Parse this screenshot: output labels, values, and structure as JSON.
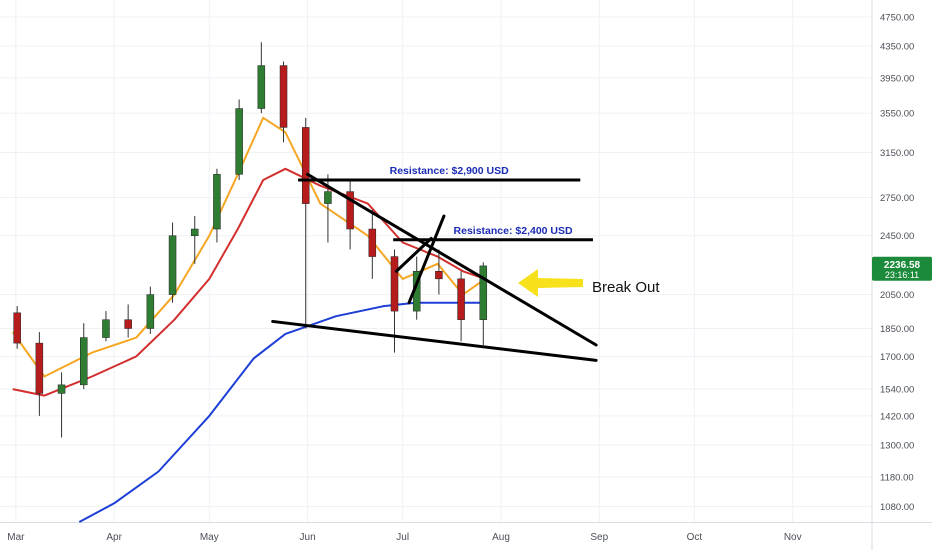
{
  "chart_data": {
    "type": "candlestick",
    "title": "",
    "xlabel": "",
    "ylabel": "",
    "y_scale": "log",
    "ylim": [
      1030,
      5000
    ],
    "grid": true,
    "x_tick_labels": [
      "Mar",
      "Apr",
      "May",
      "Jun",
      "Jul",
      "Aug",
      "Sep",
      "Oct",
      "Nov"
    ],
    "x_tick_dates": [
      "2017-03-01",
      "2017-04-01",
      "2017-05-01",
      "2017-06-01",
      "2017-07-01",
      "2017-08-01",
      "2017-09-01",
      "2017-10-01",
      "2017-11-01"
    ],
    "y_tick_labels": [
      "4750.00",
      "4350.00",
      "3950.00",
      "3550.00",
      "3150.00",
      "2750.00",
      "2450.00",
      "2050.00",
      "1850.00",
      "1700.00",
      "1540.00",
      "1420.00",
      "1300.00",
      "1180.00",
      "1080.00"
    ],
    "y_tick_values": [
      4750,
      4350,
      3950,
      3550,
      3150,
      2750,
      2450,
      2050,
      1850,
      1700,
      1540,
      1420,
      1300,
      1180,
      1080
    ],
    "x_range": [
      "2017-02-24",
      "2017-11-26"
    ],
    "last_price": "2236.58",
    "countdown": "23:16:11",
    "colors": {
      "up": "#2f7d32",
      "down": "#b71c1c",
      "ma_fast": "#f5a623",
      "ma_mid": "#d32f2f",
      "ma_slow": "#1e3fd6",
      "price_tag": "#1b8a3a",
      "annotation_text": "#1a2bb5",
      "arrow": "#f7e11a"
    },
    "candles_weekly_approx": [
      {
        "date": "2017-02-25",
        "open": 1940,
        "high": 1980,
        "low": 1740,
        "close": 1770
      },
      {
        "date": "2017-03-04",
        "open": 1770,
        "high": 1830,
        "low": 1420,
        "close": 1520
      },
      {
        "date": "2017-03-11",
        "open": 1520,
        "high": 1620,
        "low": 1330,
        "close": 1560
      },
      {
        "date": "2017-03-18",
        "open": 1560,
        "high": 1880,
        "low": 1540,
        "close": 1800
      },
      {
        "date": "2017-03-25",
        "open": 1800,
        "high": 1950,
        "low": 1780,
        "close": 1900
      },
      {
        "date": "2017-04-01",
        "open": 1900,
        "high": 1990,
        "low": 1800,
        "close": 1850
      },
      {
        "date": "2017-04-08",
        "open": 1850,
        "high": 2100,
        "low": 1820,
        "close": 2050
      },
      {
        "date": "2017-04-15",
        "open": 2050,
        "high": 2550,
        "low": 2000,
        "close": 2450
      },
      {
        "date": "2017-04-22",
        "open": 2450,
        "high": 2600,
        "low": 2250,
        "close": 2500
      },
      {
        "date": "2017-04-29",
        "open": 2500,
        "high": 3000,
        "low": 2400,
        "close": 2950
      },
      {
        "date": "2017-05-06",
        "open": 2950,
        "high": 3700,
        "low": 2900,
        "close": 3600
      },
      {
        "date": "2017-05-13",
        "open": 3600,
        "high": 4400,
        "low": 3550,
        "close": 4100
      },
      {
        "date": "2017-05-20",
        "open": 4100,
        "high": 4150,
        "low": 3250,
        "close": 3400
      },
      {
        "date": "2017-05-27",
        "open": 3400,
        "high": 3500,
        "low": 1850,
        "close": 2700
      },
      {
        "date": "2017-06-03",
        "open": 2700,
        "high": 2950,
        "low": 2400,
        "close": 2800
      },
      {
        "date": "2017-06-10",
        "open": 2800,
        "high": 2900,
        "low": 2350,
        "close": 2500
      },
      {
        "date": "2017-06-17",
        "open": 2500,
        "high": 2650,
        "low": 2150,
        "close": 2300
      },
      {
        "date": "2017-06-24",
        "open": 2300,
        "high": 2350,
        "low": 1720,
        "close": 1950
      },
      {
        "date": "2017-07-01",
        "open": 1950,
        "high": 2300,
        "low": 1900,
        "close": 2200
      },
      {
        "date": "2017-07-08",
        "open": 2200,
        "high": 2350,
        "low": 2050,
        "close": 2150
      },
      {
        "date": "2017-07-15",
        "open": 2150,
        "high": 2200,
        "low": 1780,
        "close": 1900
      },
      {
        "date": "2017-07-22",
        "open": 1900,
        "high": 2260,
        "low": 1760,
        "close": 2236
      }
    ],
    "moving_averages": [
      {
        "name": "",
        "color": "#f5a623",
        "points": [
          [
            "2017-02-28",
            1830
          ],
          [
            "2017-03-10",
            1600
          ],
          [
            "2017-03-25",
            1720
          ],
          [
            "2017-04-08",
            1800
          ],
          [
            "2017-04-20",
            2050
          ],
          [
            "2017-05-01",
            2450
          ],
          [
            "2017-05-10",
            2950
          ],
          [
            "2017-05-18",
            3500
          ],
          [
            "2017-05-25",
            3350
          ],
          [
            "2017-06-05",
            2700
          ],
          [
            "2017-06-20",
            2450
          ],
          [
            "2017-07-01",
            2150
          ],
          [
            "2017-07-12",
            2250
          ],
          [
            "2017-07-20",
            2050
          ],
          [
            "2017-07-27",
            2150
          ]
        ]
      },
      {
        "name": "",
        "color": "#d32f2f",
        "points": [
          [
            "2017-02-28",
            1540
          ],
          [
            "2017-03-10",
            1510
          ],
          [
            "2017-03-25",
            1600
          ],
          [
            "2017-04-08",
            1700
          ],
          [
            "2017-04-20",
            1900
          ],
          [
            "2017-05-01",
            2150
          ],
          [
            "2017-05-10",
            2500
          ],
          [
            "2017-05-18",
            2900
          ],
          [
            "2017-05-25",
            3000
          ],
          [
            "2017-06-05",
            2850
          ],
          [
            "2017-06-20",
            2700
          ],
          [
            "2017-07-01",
            2400
          ],
          [
            "2017-07-12",
            2300
          ],
          [
            "2017-07-20",
            2200
          ],
          [
            "2017-07-27",
            2150
          ]
        ]
      },
      {
        "name": "",
        "color": "#1e3fd6",
        "points": [
          [
            "2017-03-21",
            1030
          ],
          [
            "2017-04-01",
            1090
          ],
          [
            "2017-04-15",
            1200
          ],
          [
            "2017-05-01",
            1420
          ],
          [
            "2017-05-15",
            1690
          ],
          [
            "2017-05-25",
            1820
          ],
          [
            "2017-06-10",
            1920
          ],
          [
            "2017-06-25",
            1980
          ],
          [
            "2017-07-05",
            2000
          ],
          [
            "2017-07-15",
            2000
          ],
          [
            "2017-07-27",
            2000
          ]
        ]
      }
    ],
    "drawings": {
      "resistance_lines": [
        {
          "label": "Resistance: $2,900 USD",
          "price": 2900,
          "from": "2017-05-29",
          "to": "2017-08-26"
        },
        {
          "label": "Resistance: $2,400 USD",
          "price": 2420,
          "from": "2017-06-28",
          "to": "2017-08-30"
        }
      ],
      "trend_lines": [
        {
          "from": [
            "2017-06-01",
            2950
          ],
          "to": [
            "2017-08-31",
            1760
          ]
        },
        {
          "from": [
            "2017-05-21",
            1890
          ],
          "to": [
            "2017-08-31",
            1680
          ]
        },
        {
          "from": [
            "2017-06-29",
            2200
          ],
          "to": [
            "2017-07-10",
            2430
          ]
        },
        {
          "from": [
            "2017-07-03",
            2000
          ],
          "to": [
            "2017-07-14",
            2600
          ]
        }
      ],
      "annotation_text": "Break Out"
    }
  }
}
